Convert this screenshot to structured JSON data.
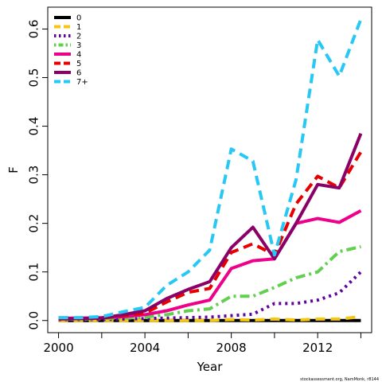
{
  "chart_data": {
    "type": "line",
    "title": "",
    "xlabel": "Year",
    "ylabel": "F",
    "xlim": [
      1999.5,
      2014.5
    ],
    "ylim": [
      -0.025,
      0.645
    ],
    "xticks": [
      2000,
      2002,
      2004,
      2006,
      2008,
      2010,
      2012,
      2014
    ],
    "xtick_labels": [
      "2000",
      "",
      "2004",
      "",
      "2008",
      "",
      "2012",
      ""
    ],
    "yticks": [
      0.0,
      0.1,
      0.2,
      0.3,
      0.4,
      0.5,
      0.6
    ],
    "ytick_labels": [
      "0.0",
      "0.1",
      "0.2",
      "0.3",
      "0.4",
      "0.5",
      "0.6"
    ],
    "grid": false,
    "legend_position": "top-left",
    "x": [
      2000,
      2001,
      2002,
      2003,
      2004,
      2005,
      2006,
      2007,
      2008,
      2009,
      2010,
      2011,
      2012,
      2013,
      2014
    ],
    "series": [
      {
        "name": "0",
        "color": "#000000",
        "dash": "solid",
        "values": [
          0.0,
          0.0,
          0.0,
          0.0,
          0.0,
          0.0,
          0.0,
          0.0,
          0.0,
          0.0,
          0.0,
          0.0,
          0.0,
          0.0,
          0.0
        ]
      },
      {
        "name": "1",
        "color": "#f5c710",
        "dash": "dashed",
        "values": [
          0.0,
          0.0,
          0.0,
          0.0,
          0.0,
          0.0,
          0.0,
          0.0,
          0.002,
          0.001,
          0.003,
          0.001,
          0.003,
          0.003,
          0.008
        ]
      },
      {
        "name": "2",
        "color": "#61049e",
        "dash": "dotted",
        "values": [
          0.002,
          0.002,
          0.002,
          0.003,
          0.004,
          0.005,
          0.006,
          0.007,
          0.01,
          0.013,
          0.035,
          0.035,
          0.042,
          0.057,
          0.1
        ]
      },
      {
        "name": "3",
        "color": "#61d04f",
        "dash": "dotdash",
        "values": [
          0.003,
          0.003,
          0.004,
          0.005,
          0.007,
          0.012,
          0.02,
          0.024,
          0.05,
          0.05,
          0.068,
          0.088,
          0.1,
          0.142,
          0.152
        ]
      },
      {
        "name": "4",
        "color": "#ee008a",
        "dash": "solid",
        "values": [
          0.005,
          0.005,
          0.006,
          0.008,
          0.012,
          0.02,
          0.032,
          0.042,
          0.107,
          0.123,
          0.127,
          0.2,
          0.21,
          0.202,
          0.226
        ]
      },
      {
        "name": "5",
        "color": "#e80000",
        "dash": "dashed",
        "values": [
          0.004,
          0.004,
          0.005,
          0.01,
          0.015,
          0.038,
          0.058,
          0.066,
          0.14,
          0.158,
          0.135,
          0.24,
          0.297,
          0.273,
          0.347
        ]
      },
      {
        "name": "6",
        "color": "#8b0066",
        "dash": "solid",
        "values": [
          0.003,
          0.004,
          0.005,
          0.012,
          0.02,
          0.045,
          0.064,
          0.08,
          0.15,
          0.192,
          0.127,
          0.2,
          0.28,
          0.273,
          0.385
        ]
      },
      {
        "name": "7+",
        "color": "#28c8f4",
        "dash": "dashed",
        "values": [
          0.006,
          0.006,
          0.008,
          0.018,
          0.027,
          0.072,
          0.1,
          0.145,
          0.353,
          0.328,
          0.135,
          0.29,
          0.578,
          0.503,
          0.62
        ]
      }
    ]
  },
  "credit": "stockassessment.org, NamMonk, r8144"
}
